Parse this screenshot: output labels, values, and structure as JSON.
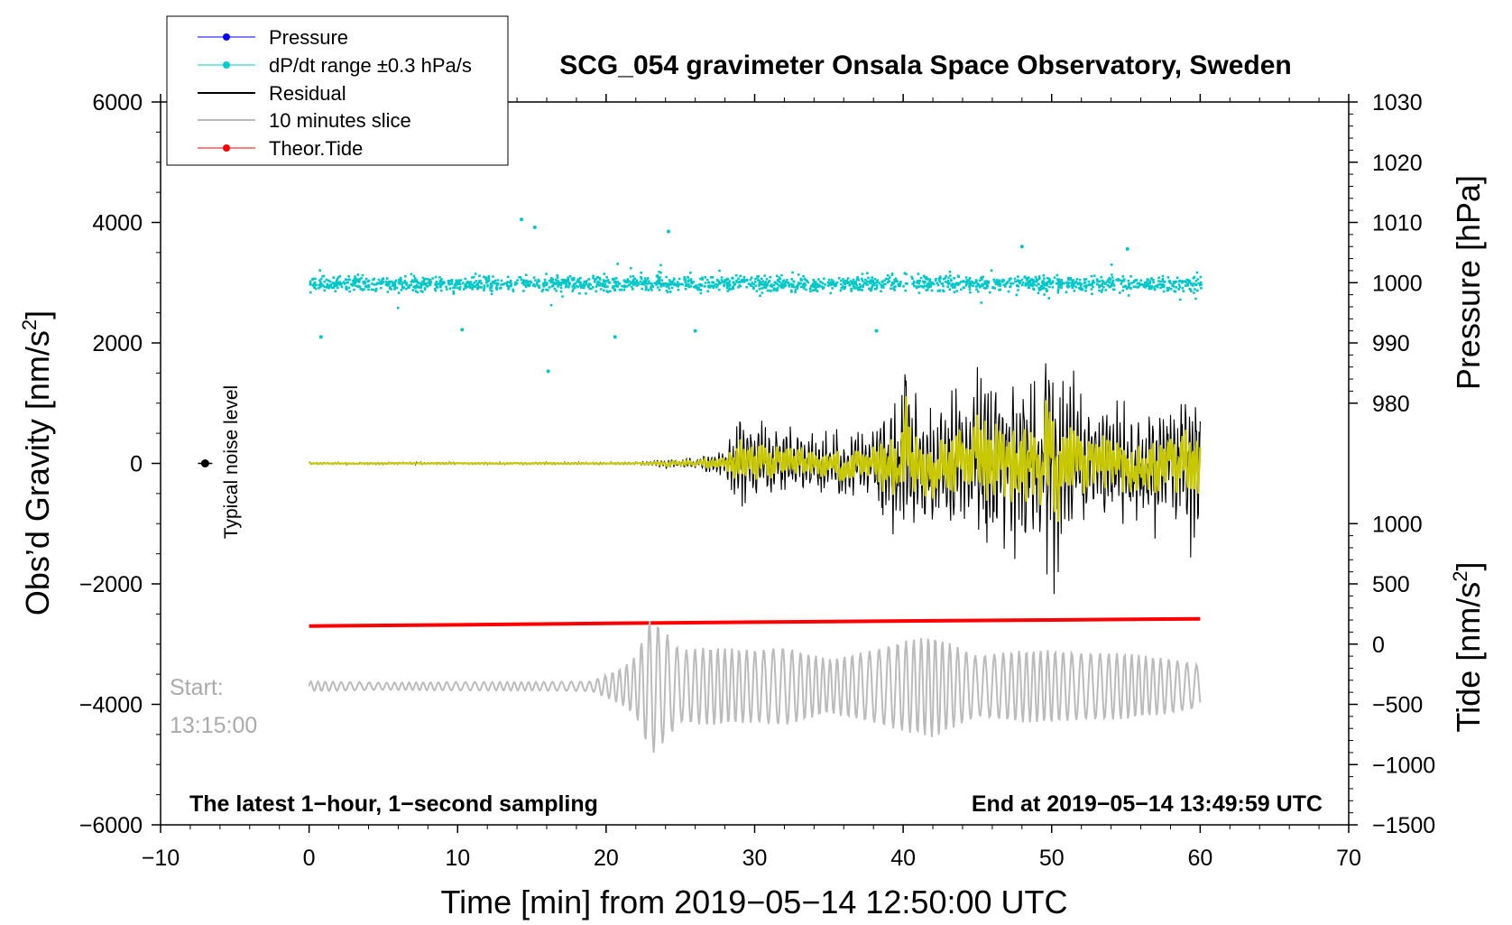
{
  "chart_data": {
    "type": "line",
    "title": "SCG_054 gravimeter Onsala Space Observatory, Sweden",
    "xlabel": "Time [min] from 2019−05−14 12:50:00 UTC",
    "ylabel_left_main": "Obs’d Gravity [nm/s",
    "ylabel_left_sup": "2",
    "ylabel_left_end": "]",
    "ylabel_right_top": "Pressure [hPa]",
    "ylabel_right_bottom_main": "Tide [nm/s",
    "ylabel_right_bottom_sup": "2",
    "ylabel_right_bottom_end": "]",
    "xlim": [
      -10,
      70
    ],
    "ylim": [
      -6000,
      6000
    ],
    "x_ticks": [
      -10,
      0,
      10,
      20,
      30,
      40,
      50,
      60,
      70
    ],
    "x_tick_labels": [
      "−10",
      "0",
      "10",
      "20",
      "30",
      "40",
      "50",
      "60",
      "70"
    ],
    "y_ticks": [
      6000,
      4000,
      2000,
      0,
      -2000,
      -4000,
      -6000
    ],
    "y_tick_labels": [
      "6000",
      "4000",
      "2000",
      "0",
      "−2000",
      "−4000",
      "−6000"
    ],
    "pressure_axis": {
      "ticks": [
        1030,
        1020,
        1010,
        1000,
        990,
        980
      ],
      "tick_labels": [
        "1030",
        "1020",
        "1010",
        "1000",
        "990",
        "980"
      ],
      "gravity_at_1000": 3000,
      "gravity_per_hpa": 100
    },
    "tide_axis": {
      "ticks": [
        1000,
        500,
        0,
        -500,
        -1000,
        -1500
      ],
      "tick_labels": [
        "1000",
        "500",
        "0",
        "−500",
        "−1000",
        "−1500"
      ],
      "gravity_at_zero": -3000,
      "gravity_per_unit": 2
    },
    "legend": {
      "placement": "top-left",
      "entries": [
        {
          "label": "Pressure",
          "color": "#0000ff",
          "marker": "dot"
        },
        {
          "label": "dP/dt range ±0.3 hPa/s",
          "color": "#00cccc",
          "marker": "dot"
        },
        {
          "label": "Residual",
          "color": "#000000",
          "marker": "line"
        },
        {
          "label": "10 minutes slice",
          "color": "#bbbbbb",
          "marker": "line"
        },
        {
          "label": "Theor.Tide",
          "color": "#ff0000",
          "marker": "dot"
        }
      ]
    },
    "annotations": {
      "noise_label": "Typical noise level",
      "noise_point": {
        "x": -7,
        "y": 0
      },
      "start_label_1": "Start:",
      "start_label_2": "13:15:00",
      "bottom_left": "The latest 1−hour, 1−second sampling",
      "bottom_right": "End at 2019−05−14 13:49:59 UTC"
    },
    "series_colors": {
      "dpdt": "#00c8c8",
      "residual": "#000000",
      "filtered": "#c8c800",
      "slice": "#bbbbbb",
      "tide": "#ff0000"
    },
    "series": [
      {
        "name": "Theor.Tide",
        "x": [
          0,
          10,
          20,
          30,
          40,
          50,
          60
        ],
        "y": [
          -2700,
          -2680,
          -2655,
          -2635,
          -2615,
          -2600,
          -2580
        ]
      },
      {
        "name": "Residual envelope",
        "x": [
          0,
          5,
          10,
          15,
          20,
          23,
          24,
          26,
          27,
          28,
          29,
          30,
          32,
          34,
          36,
          38,
          39,
          40,
          42,
          44,
          46,
          48,
          50,
          52,
          54,
          56,
          58,
          60
        ],
        "y": [
          25,
          25,
          25,
          25,
          25,
          40,
          100,
          120,
          200,
          300,
          1000,
          800,
          700,
          600,
          700,
          700,
          1500,
          1700,
          1300,
          1300,
          2200,
          1800,
          2200,
          1500,
          1300,
          1300,
          1200,
          1800
        ]
      },
      {
        "name": "10 minutes slice envelope",
        "x": [
          0,
          5,
          10,
          15,
          19,
          21,
          22,
          23,
          24,
          25,
          27,
          30,
          32,
          35,
          38,
          40,
          42,
          45,
          48,
          50,
          52,
          55,
          58,
          60
        ],
        "y": [
          80,
          60,
          70,
          70,
          80,
          300,
          500,
          1150,
          900,
          600,
          650,
          600,
          650,
          450,
          600,
          750,
          850,
          500,
          600,
          600,
          550,
          550,
          450,
          350
        ]
      },
      {
        "name": "dP/dt range",
        "center": 3000,
        "band": 150,
        "outliers": [
          {
            "x": 0.8,
            "y": 2100
          },
          {
            "x": 10.3,
            "y": 2220
          },
          {
            "x": 14.3,
            "y": 4050
          },
          {
            "x": 15.2,
            "y": 3920
          },
          {
            "x": 16.1,
            "y": 1530
          },
          {
            "x": 20.6,
            "y": 2100
          },
          {
            "x": 24.2,
            "y": 3850
          },
          {
            "x": 26.0,
            "y": 2200
          },
          {
            "x": 38.2,
            "y": 2200
          },
          {
            "x": 48.0,
            "y": 3600
          },
          {
            "x": 55.1,
            "y": 3560
          }
        ]
      }
    ]
  }
}
